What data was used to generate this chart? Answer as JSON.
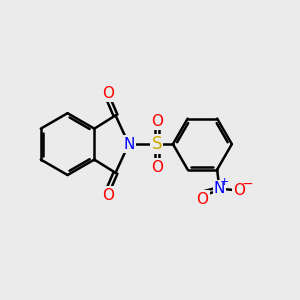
{
  "bg_color": "#ebebeb",
  "bond_color": "#000000",
  "bond_width": 1.8,
  "atom_colors": {
    "N": "#0000ff",
    "O": "#ff0000",
    "S": "#ccaa00",
    "C": "#000000"
  },
  "font_size": 10,
  "fig_size": [
    3.0,
    3.0
  ],
  "dpi": 100
}
